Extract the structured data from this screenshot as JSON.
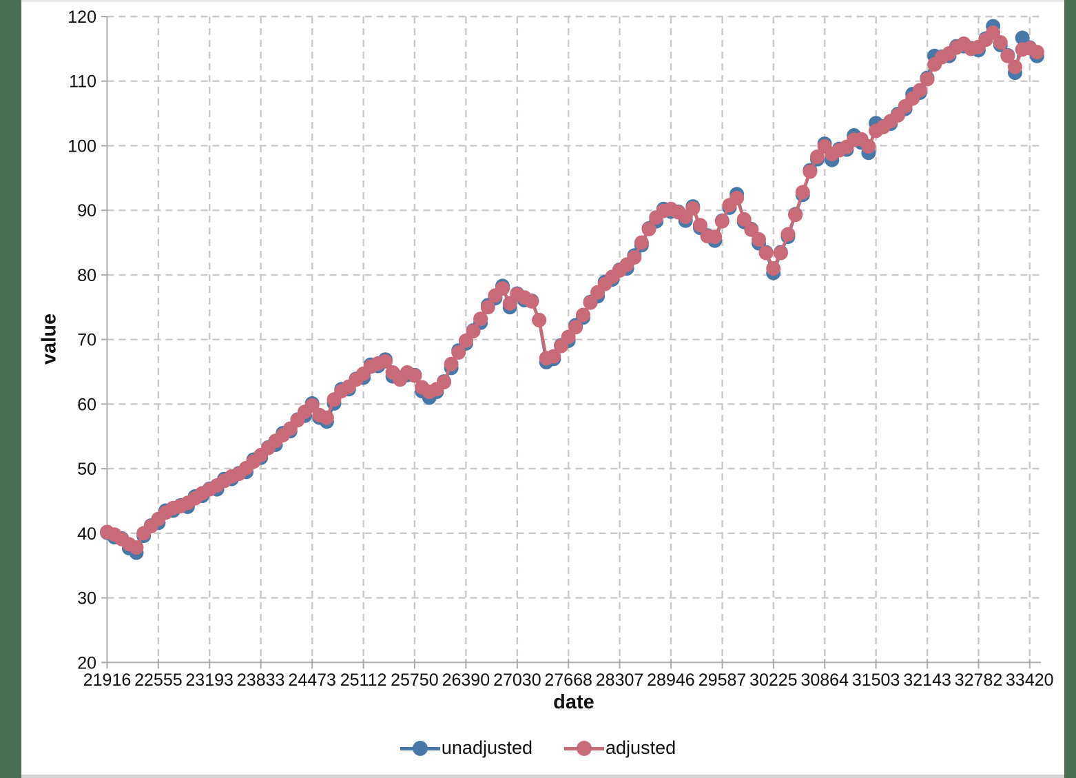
{
  "window": {
    "side_band_color": "#4a7052",
    "bottom_band_color": "#d4d4d4",
    "chart_background": "#ffffff"
  },
  "styles": {
    "grid_color": "#c9c9c9",
    "axis_color": "#ababab",
    "tick_text_color": "#111111",
    "tick_font_px": 25
  },
  "labels": {
    "xlabel": "date",
    "ylabel": "value"
  },
  "chart_data": {
    "type": "line",
    "title": "",
    "xlabel": "date",
    "ylabel": "value",
    "grid": "dashed",
    "legend_position": "bottom-center",
    "x_axis": {
      "tick_labels": [
        21916,
        22555,
        23193,
        23833,
        24473,
        25112,
        25750,
        26390,
        27030,
        27668,
        28307,
        28946,
        29587,
        30225,
        30864,
        31503,
        32143,
        32782,
        33420
      ],
      "min": 21916,
      "max": 33560,
      "points_start": 21916,
      "points_step_days": 91.3,
      "n_points": 128
    },
    "y_axis": {
      "min": 20,
      "max": 120,
      "tick_interval": 10,
      "tick_labels": [
        20,
        30,
        40,
        50,
        60,
        70,
        80,
        90,
        100,
        110,
        120
      ]
    },
    "series": [
      {
        "name": "unadjusted",
        "color": "#4878a8",
        "marker": "circle",
        "values": [
          40.1,
          39.4,
          39.2,
          37.7,
          37.0,
          39.6,
          41.2,
          41.6,
          43.5,
          43.5,
          44.3,
          44.1,
          45.7,
          45.8,
          46.9,
          46.8,
          48.4,
          48.4,
          49.3,
          49.5,
          51.4,
          51.7,
          53.3,
          53.7,
          55.5,
          55.8,
          57.6,
          58.2,
          60.1,
          57.9,
          57.3,
          60.1,
          62.3,
          62.3,
          63.9,
          64.1,
          66.1,
          65.9,
          66.9,
          64.3,
          64.1,
          64.5,
          64.5,
          62.0,
          61.0,
          61.9,
          63.5,
          65.6,
          68.3,
          69.4,
          71.4,
          72.6,
          75.3,
          76.4,
          78.3,
          75.0,
          77.1,
          76.1,
          76.0,
          73.0,
          66.5,
          67.0,
          69.1,
          69.8,
          72.2,
          73.4,
          75.8,
          76.7,
          78.9,
          79.3,
          80.8,
          81.0,
          83.0,
          84.6,
          87.2,
          88.3,
          90.2,
          89.8,
          89.8,
          88.4,
          90.6,
          87.3,
          86.1,
          85.3,
          88.4,
          90.4,
          92.5,
          88.2,
          87.1,
          84.9,
          83.5,
          80.3,
          83.5,
          85.9,
          89.4,
          92.4,
          96.2,
          97.9,
          100.3,
          97.8,
          99.5,
          99.4,
          101.6,
          100.5,
          98.9,
          103.5,
          103.0,
          103.4,
          104.9,
          105.7,
          108.0,
          108.2,
          110.5,
          113.9,
          113.8,
          113.9,
          115.4,
          115.4,
          115.1,
          114.8,
          116.6,
          118.5,
          115.6,
          114.0,
          111.3,
          116.7,
          115.2,
          113.9
        ]
      },
      {
        "name": "adjusted",
        "color": "#c96a78",
        "marker": "circle",
        "values": [
          40.2,
          39.8,
          39.1,
          38.3,
          37.8,
          40.0,
          41.1,
          42.2,
          43.2,
          43.9,
          44.2,
          44.7,
          45.4,
          46.2,
          46.8,
          47.4,
          48.1,
          48.8,
          49.2,
          50.1,
          51.1,
          52.1,
          53.2,
          54.3,
          55.2,
          56.2,
          57.5,
          58.8,
          59.8,
          58.3,
          57.9,
          60.7,
          62.0,
          62.7,
          63.8,
          64.7,
          65.8,
          66.3,
          66.6,
          64.9,
          63.8,
          64.9,
          64.4,
          62.6,
          61.9,
          62.3,
          63.4,
          66.2,
          68.0,
          69.8,
          71.3,
          73.2,
          75.0,
          76.8,
          77.9,
          75.6,
          77.0,
          76.5,
          75.9,
          73.0,
          67.1,
          67.4,
          69.0,
          70.4,
          71.9,
          73.8,
          75.7,
          77.3,
          78.6,
          79.7,
          80.7,
          81.6,
          82.7,
          85.0,
          87.1,
          88.9,
          89.9,
          90.2,
          89.7,
          89.0,
          90.3,
          87.7,
          86.0,
          85.9,
          88.3,
          90.8,
          91.9,
          88.6,
          87.0,
          85.5,
          83.4,
          81.0,
          83.4,
          86.3,
          89.3,
          92.8,
          96.0,
          98.3,
          99.9,
          98.7,
          99.3,
          99.8,
          100.9,
          101.0,
          99.9,
          102.3,
          102.9,
          103.8,
          104.7,
          106.1,
          107.3,
          108.6,
          110.3,
          112.6,
          113.7,
          114.3,
          115.2,
          115.8,
          115.0,
          115.3,
          116.4,
          117.5,
          116.0,
          113.9,
          112.2,
          114.9,
          115.1,
          114.5
        ]
      }
    ]
  },
  "legend": {
    "items": [
      {
        "label": "unadjusted"
      },
      {
        "label": "adjusted"
      }
    ]
  }
}
